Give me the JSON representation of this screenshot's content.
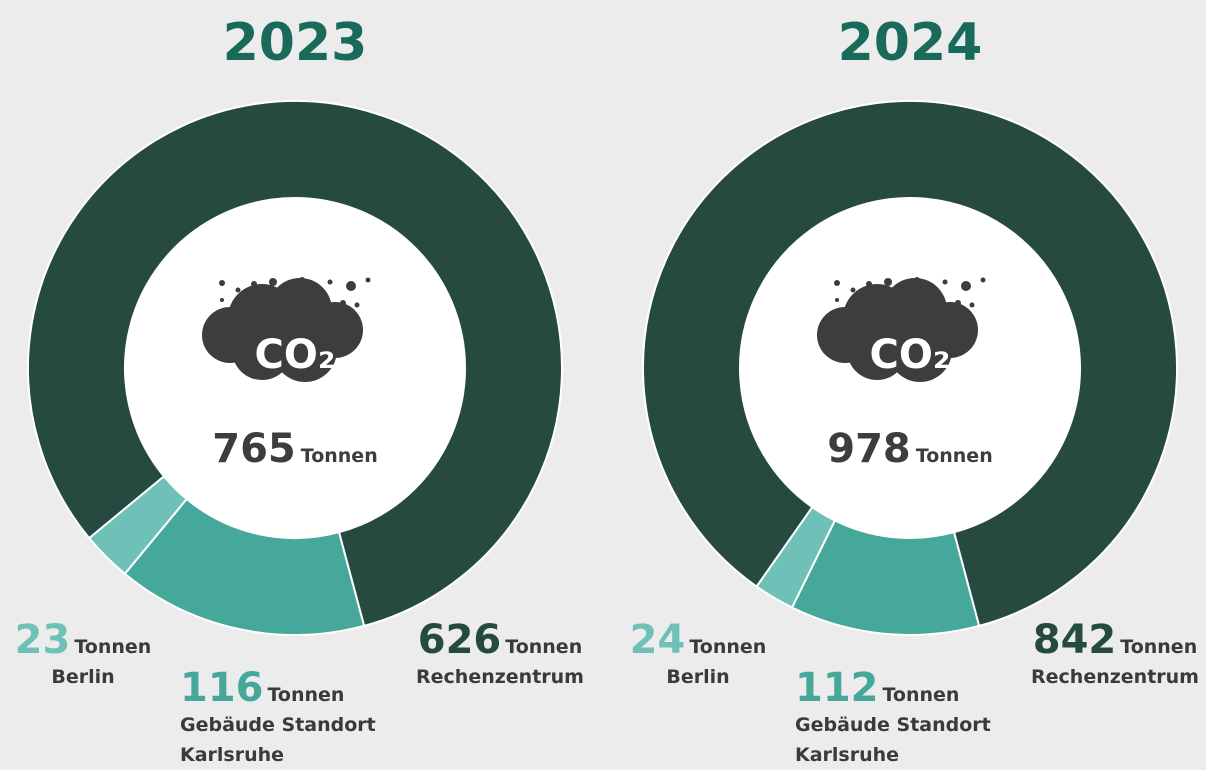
{
  "chart_data": [
    {
      "type": "donut",
      "title": "2023",
      "total": 765,
      "unit": "Tonnen",
      "icon_label": "CO₂",
      "categories": [
        "Rechenzentrum",
        "Gebäude Standort Karlsruhe",
        "Berlin"
      ],
      "values": [
        626,
        116,
        23
      ],
      "colors": [
        "#264a40",
        "#46a89a",
        "#6fc1b8"
      ]
    },
    {
      "type": "donut",
      "title": "2024",
      "total": 978,
      "unit": "Tonnen",
      "icon_label": "CO₂",
      "categories": [
        "Rechenzentrum",
        "Gebäude Standort Karlsruhe",
        "Berlin"
      ],
      "values": [
        842,
        112,
        24
      ],
      "colors": [
        "#264a40",
        "#46a89a",
        "#6fc1b8"
      ]
    }
  ]
}
